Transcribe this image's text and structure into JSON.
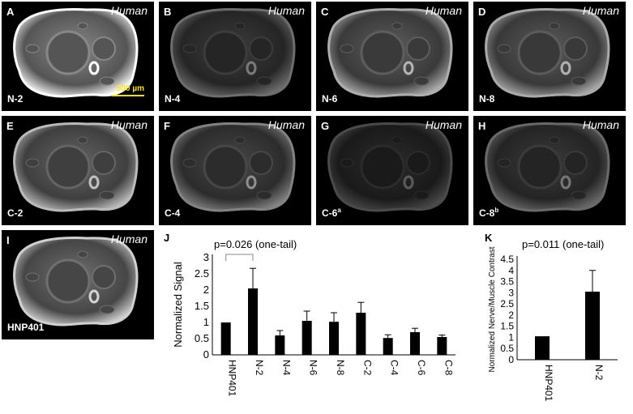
{
  "panels": [
    {
      "letter": "A",
      "species": "Human",
      "condition": "N-2",
      "condition_sup": "",
      "brightness": 1.0
    },
    {
      "letter": "B",
      "species": "Human",
      "condition": "N-4",
      "condition_sup": "",
      "brightness": 0.32
    },
    {
      "letter": "C",
      "species": "Human",
      "condition": "N-6",
      "condition_sup": "",
      "brightness": 0.62
    },
    {
      "letter": "D",
      "species": "Human",
      "condition": "N-8",
      "condition_sup": "",
      "brightness": 0.6
    },
    {
      "letter": "E",
      "species": "Human",
      "condition": "C-2",
      "condition_sup": "",
      "brightness": 0.68
    },
    {
      "letter": "F",
      "species": "Human",
      "condition": "C-4",
      "condition_sup": "",
      "brightness": 0.42
    },
    {
      "letter": "G",
      "species": "Human",
      "condition": "C-6",
      "condition_sup": "a",
      "brightness": 0.16
    },
    {
      "letter": "H",
      "species": "Human",
      "condition": "C-8",
      "condition_sup": "b",
      "brightness": 0.3
    },
    {
      "letter": "I",
      "species": "Human",
      "condition": "HNP401",
      "condition_sup": "",
      "brightness": 0.78
    }
  ],
  "scale_bar": {
    "label": "500 µm",
    "color": "#ffe600"
  },
  "chart_data": [
    {
      "letter": "J",
      "type": "bar",
      "categories": [
        "HNP401",
        "N-2",
        "N-4",
        "N-6",
        "N-8",
        "C-2",
        "C-4",
        "C-6",
        "C-8"
      ],
      "values": [
        1.0,
        2.05,
        0.6,
        1.05,
        1.02,
        1.3,
        0.52,
        0.7,
        0.55
      ],
      "errors": [
        0,
        0.62,
        0.15,
        0.3,
        0.28,
        0.32,
        0.1,
        0.12,
        0.06
      ],
      "ylabel": "Normalized  Signal",
      "ylim": [
        0,
        3
      ],
      "yticks": [
        "0",
        "0.5",
        "1",
        "1.5",
        "2",
        "2.5",
        "3"
      ],
      "annotation": "p=0.026 (one-tail)",
      "bar_color": "#000000"
    },
    {
      "letter": "K",
      "type": "bar",
      "categories": [
        "HNP401",
        "N-2"
      ],
      "values": [
        1.05,
        3.05
      ],
      "errors": [
        0,
        0.95
      ],
      "ylabel": "Normalized Nerve/Muscle Contrast",
      "ylim": [
        0,
        4.5
      ],
      "yticks": [
        "0",
        "0.5",
        "1",
        "1.5",
        "2",
        "2.5",
        "3",
        "3.5",
        "4",
        "4.5"
      ],
      "annotation": "p=0.011 (one-tail)",
      "bar_color": "#000000"
    }
  ]
}
